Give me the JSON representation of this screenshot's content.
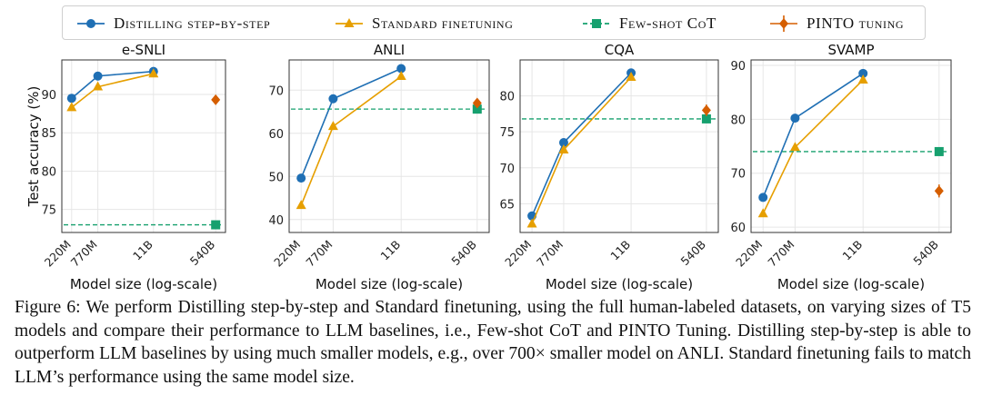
{
  "legend": {
    "items": [
      {
        "label": "Distilling step-by-step",
        "color": "#1f6fb4",
        "marker": "circle"
      },
      {
        "label": "Standard finetuning",
        "color": "#e69f00",
        "marker": "triangle"
      },
      {
        "label": "Few-shot CoT",
        "color": "#16a06e",
        "marker": "square",
        "dashed": true
      },
      {
        "label": "PINTO tuning",
        "color": "#d55e00",
        "marker": "diamond",
        "errorbar": true
      }
    ]
  },
  "chart_data": [
    {
      "type": "line",
      "title": "e-SNLI",
      "xlabel": "Model size (log-scale)",
      "ylabel": "Test accuracy (%)",
      "categories": [
        "220M",
        "770M",
        "11B",
        "540B"
      ],
      "ylim": [
        72,
        94.5
      ],
      "yticks": [
        75,
        80,
        85,
        90
      ],
      "grid": true,
      "series": [
        {
          "name": "Distilling step-by-step",
          "values": [
            89.5,
            92.4,
            93.0,
            null
          ]
        },
        {
          "name": "Standard finetuning",
          "values": [
            88.3,
            91.0,
            92.7,
            null
          ]
        },
        {
          "name": "Few-shot CoT",
          "values": [
            null,
            null,
            null,
            73.0
          ],
          "hline": 73.0
        },
        {
          "name": "PINTO tuning",
          "values": [
            null,
            null,
            null,
            89.3
          ],
          "err": 0.6
        }
      ]
    },
    {
      "type": "line",
      "title": "ANLI",
      "xlabel": "Model size (log-scale)",
      "ylabel": "",
      "categories": [
        "220M",
        "770M",
        "11B",
        "540B"
      ],
      "ylim": [
        37,
        77
      ],
      "yticks": [
        40,
        50,
        60,
        70
      ],
      "grid": true,
      "series": [
        {
          "name": "Distilling step-by-step",
          "values": [
            49.6,
            68.0,
            75.0,
            null
          ]
        },
        {
          "name": "Standard finetuning",
          "values": [
            43.3,
            61.6,
            73.2,
            null
          ]
        },
        {
          "name": "Few-shot CoT",
          "values": [
            null,
            null,
            null,
            65.6
          ],
          "hline": 65.6
        },
        {
          "name": "PINTO tuning",
          "values": [
            null,
            null,
            null,
            67.0
          ],
          "err": 1.0
        }
      ]
    },
    {
      "type": "line",
      "title": "CQA",
      "xlabel": "Model size (log-scale)",
      "ylabel": "",
      "categories": [
        "220M",
        "770M",
        "11B",
        "540B"
      ],
      "ylim": [
        61,
        85
      ],
      "yticks": [
        65,
        70,
        75,
        80
      ],
      "grid": true,
      "series": [
        {
          "name": "Distilling step-by-step",
          "values": [
            63.3,
            73.5,
            83.2,
            null
          ]
        },
        {
          "name": "Standard finetuning",
          "values": [
            62.2,
            72.5,
            82.6,
            null
          ]
        },
        {
          "name": "Few-shot CoT",
          "values": [
            null,
            null,
            null,
            76.8
          ],
          "hline": 76.8
        },
        {
          "name": "PINTO tuning",
          "values": [
            null,
            null,
            null,
            78.0
          ],
          "err": 0.8
        }
      ]
    },
    {
      "type": "line",
      "title": "SVAMP",
      "xlabel": "Model size (log-scale)",
      "ylabel": "",
      "categories": [
        "220M",
        "770M",
        "11B",
        "540B"
      ],
      "ylim": [
        59,
        91
      ],
      "yticks": [
        60,
        70,
        80,
        90
      ],
      "grid": true,
      "series": [
        {
          "name": "Distilling step-by-step",
          "values": [
            65.5,
            80.2,
            88.5,
            null
          ]
        },
        {
          "name": "Standard finetuning",
          "values": [
            62.5,
            74.8,
            87.3,
            null
          ]
        },
        {
          "name": "Few-shot CoT",
          "values": [
            null,
            null,
            null,
            74.0
          ],
          "hline": 74.0
        },
        {
          "name": "PINTO tuning",
          "values": [
            null,
            null,
            null,
            66.7
          ],
          "err": 1.2
        }
      ]
    }
  ],
  "caption": "Figure 6: We perform Distilling step-by-step and Standard finetuning, using the full human-labeled datasets, on varying sizes of T5 models and compare their performance to LLM baselines, i.e., Few-shot CoT and PINTO Tuning. Distilling step-by-step is able to outperform LLM baselines by using much smaller models, e.g., over 700× smaller model on ANLI. Standard finetuning fails to match LLM’s performance using the same model size."
}
